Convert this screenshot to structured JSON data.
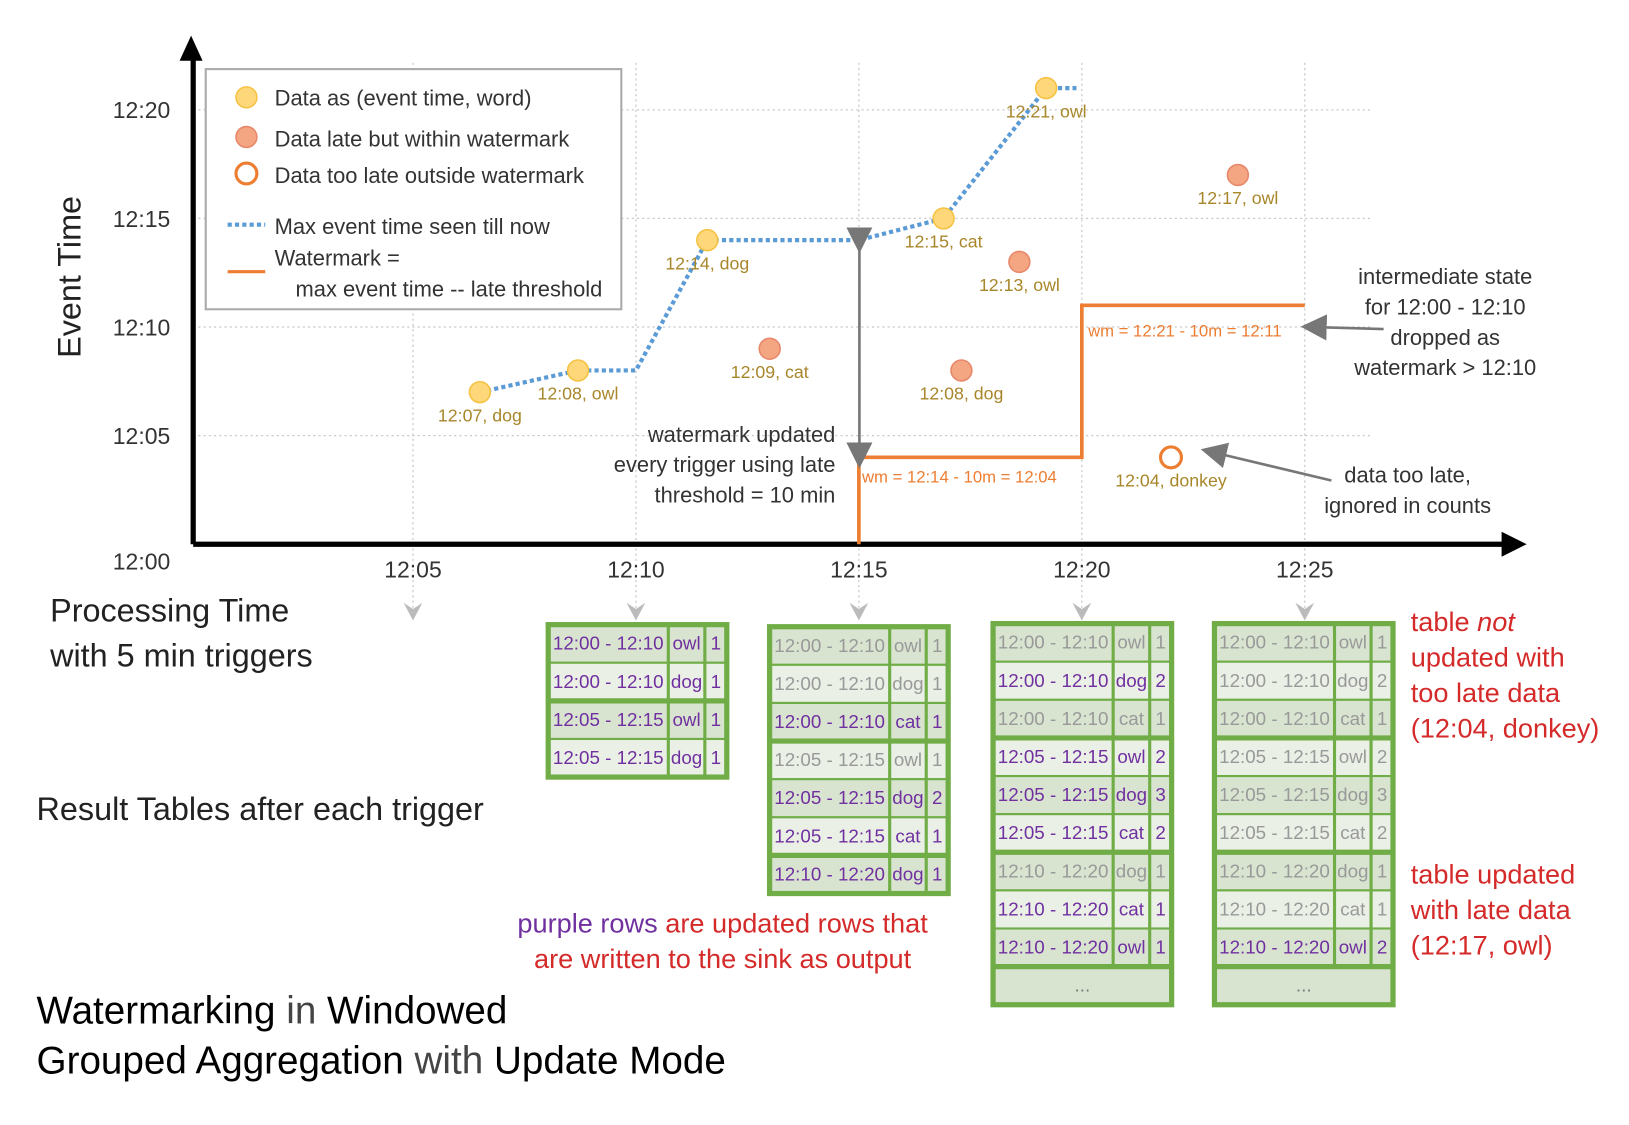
{
  "title": {
    "parts": [
      {
        "text": "Watermarking",
        "strong": true
      },
      {
        "text": " in ",
        "strong": false
      },
      {
        "text": "Windowed",
        "strong": true
      }
    ],
    "parts2": [
      {
        "text": "Grouped Aggregation",
        "strong": true
      },
      {
        "text": " with ",
        "strong": false
      },
      {
        "text": "Update Mode",
        "strong": true
      }
    ]
  },
  "axes": {
    "y_label": "Event Time",
    "x_label_line1": "Processing Time",
    "x_label_line2": "with 5 min triggers",
    "y_ticks": [
      "12:00",
      "12:05",
      "12:10",
      "12:15",
      "12:20"
    ],
    "x_ticks": [
      "12:05",
      "12:10",
      "12:15",
      "12:20",
      "12:25"
    ]
  },
  "legend": {
    "on_time": "Data as (event time, word)",
    "late": "Data late but within watermark",
    "too_late": "Data too late outside watermark",
    "max_line": "Max event time seen till now",
    "wm_line1": "Watermark =",
    "wm_line2": "max event time -- late threshold"
  },
  "colors": {
    "on_time": "#fdd77a",
    "late": "#f4a582",
    "too_late": "#ed7d31",
    "max_line": "#5b9bd5",
    "watermark": "#ed7d31",
    "table_border": "#70ad47",
    "updated": "#7030a0",
    "unchanged": "#999999",
    "annotation": "#d42a2a"
  },
  "points": [
    {
      "label": "12:07, dog",
      "kind": "on_time",
      "proc_min": 6.5,
      "event_min": 7
    },
    {
      "label": "12:08, owl",
      "kind": "on_time",
      "proc_min": 8.7,
      "event_min": 8
    },
    {
      "label": "12:14, dog",
      "kind": "on_time",
      "proc_min": 11.6,
      "event_min": 14
    },
    {
      "label": "12:09, cat",
      "kind": "late",
      "proc_min": 13,
      "event_min": 9
    },
    {
      "label": "12:15, cat",
      "kind": "on_time",
      "proc_min": 16.9,
      "event_min": 15
    },
    {
      "label": "12:08, dog",
      "kind": "late",
      "proc_min": 17.3,
      "event_min": 8
    },
    {
      "label": "12:13, owl",
      "kind": "late",
      "proc_min": 18.6,
      "event_min": 13
    },
    {
      "label": "12:21, owl",
      "kind": "on_time",
      "proc_min": 19.2,
      "event_min": 21
    },
    {
      "label": "12:04, donkey",
      "kind": "too_late",
      "proc_min": 22,
      "event_min": 4
    },
    {
      "label": "12:17, owl",
      "kind": "late",
      "proc_min": 23.5,
      "event_min": 17
    }
  ],
  "watermark_labels": [
    "wm = 12:14 - 10m = 12:04",
    "wm = 12:21 - 10m = 12:11"
  ],
  "annotations": {
    "wm_updated": [
      "watermark updated",
      "every trigger using late",
      "threshold = 10 min"
    ],
    "intermediate": [
      "intermediate state",
      "for 12:00 - 12:10",
      "dropped as",
      "watermark > 12:10"
    ],
    "too_late": [
      "data too late,",
      "ignored in counts"
    ],
    "result_tables": "Result Tables after each trigger",
    "purple_rows_a": "purple rows",
    "purple_rows_b": " are updated rows that",
    "purple_rows_c": "are written to the sink as output",
    "not_updated": [
      "table ",
      "not",
      "updated with",
      "too late data",
      "(12:04, donkey)"
    ],
    "updated_late": [
      "table updated",
      "with late data",
      "(12:17, owl)"
    ]
  },
  "tables": [
    {
      "trigger": "12:10",
      "ellipsis": false,
      "rows": [
        [
          "12:00 - 12:10",
          "owl",
          "1",
          true
        ],
        [
          "12:00 - 12:10",
          "dog",
          "1",
          true
        ],
        [
          "12:05 - 12:15",
          "owl",
          "1",
          true
        ],
        [
          "12:05 - 12:15",
          "dog",
          "1",
          true
        ]
      ]
    },
    {
      "trigger": "12:15",
      "ellipsis": false,
      "rows": [
        [
          "12:00 - 12:10",
          "owl",
          "1",
          false
        ],
        [
          "12:00 - 12:10",
          "dog",
          "1",
          false
        ],
        [
          "12:00 - 12:10",
          "cat",
          "1",
          true
        ],
        [
          "12:05 - 12:15",
          "owl",
          "1",
          false
        ],
        [
          "12:05 - 12:15",
          "dog",
          "2",
          true
        ],
        [
          "12:05 - 12:15",
          "cat",
          "1",
          true
        ],
        [
          "12:10 - 12:20",
          "dog",
          "1",
          true
        ]
      ]
    },
    {
      "trigger": "12:20",
      "ellipsis": true,
      "rows": [
        [
          "12:00 - 12:10",
          "owl",
          "1",
          false
        ],
        [
          "12:00 - 12:10",
          "dog",
          "2",
          true
        ],
        [
          "12:00 - 12:10",
          "cat",
          "1",
          false
        ],
        [
          "12:05 - 12:15",
          "owl",
          "2",
          true
        ],
        [
          "12:05 - 12:15",
          "dog",
          "3",
          true
        ],
        [
          "12:05 - 12:15",
          "cat",
          "2",
          true
        ],
        [
          "12:10 - 12:20",
          "dog",
          "1",
          false
        ],
        [
          "12:10 - 12:20",
          "cat",
          "1",
          true
        ],
        [
          "12:10 - 12:20",
          "owl",
          "1",
          true
        ]
      ]
    },
    {
      "trigger": "12:25",
      "ellipsis": true,
      "rows": [
        [
          "12:00 - 12:10",
          "owl",
          "1",
          false
        ],
        [
          "12:00 - 12:10",
          "dog",
          "2",
          false
        ],
        [
          "12:00 - 12:10",
          "cat",
          "1",
          false
        ],
        [
          "12:05 - 12:15",
          "owl",
          "2",
          false
        ],
        [
          "12:05 - 12:15",
          "dog",
          "3",
          false
        ],
        [
          "12:05 - 12:15",
          "cat",
          "2",
          false
        ],
        [
          "12:10 - 12:20",
          "dog",
          "1",
          false
        ],
        [
          "12:10 - 12:20",
          "cat",
          "1",
          false
        ],
        [
          "12:10 - 12:20",
          "owl",
          "2",
          true
        ]
      ]
    }
  ],
  "ellipsis": "..."
}
